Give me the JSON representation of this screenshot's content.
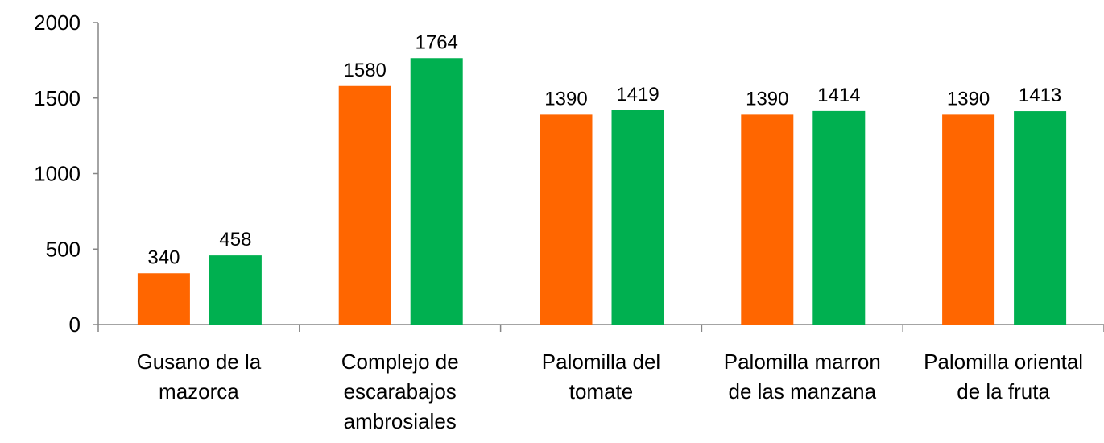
{
  "chart_data": {
    "type": "bar",
    "categories": [
      "Gusano de la mazorca",
      "Complejo de escarabajos ambrosiales",
      "Palomilla del tomate",
      "Palomilla marron de las manzana",
      "Palomilla oriental de la fruta"
    ],
    "series": [
      {
        "color": "#ff6600",
        "values": [
          340,
          1580,
          1390,
          1390,
          1390
        ]
      },
      {
        "color": "#00b050",
        "values": [
          458,
          1764,
          1419,
          1414,
          1413
        ]
      }
    ],
    "ylim": [
      0,
      2000
    ],
    "yticks": [
      0,
      500,
      1000,
      1500,
      2000
    ],
    "grid": false,
    "data_labels": true
  }
}
